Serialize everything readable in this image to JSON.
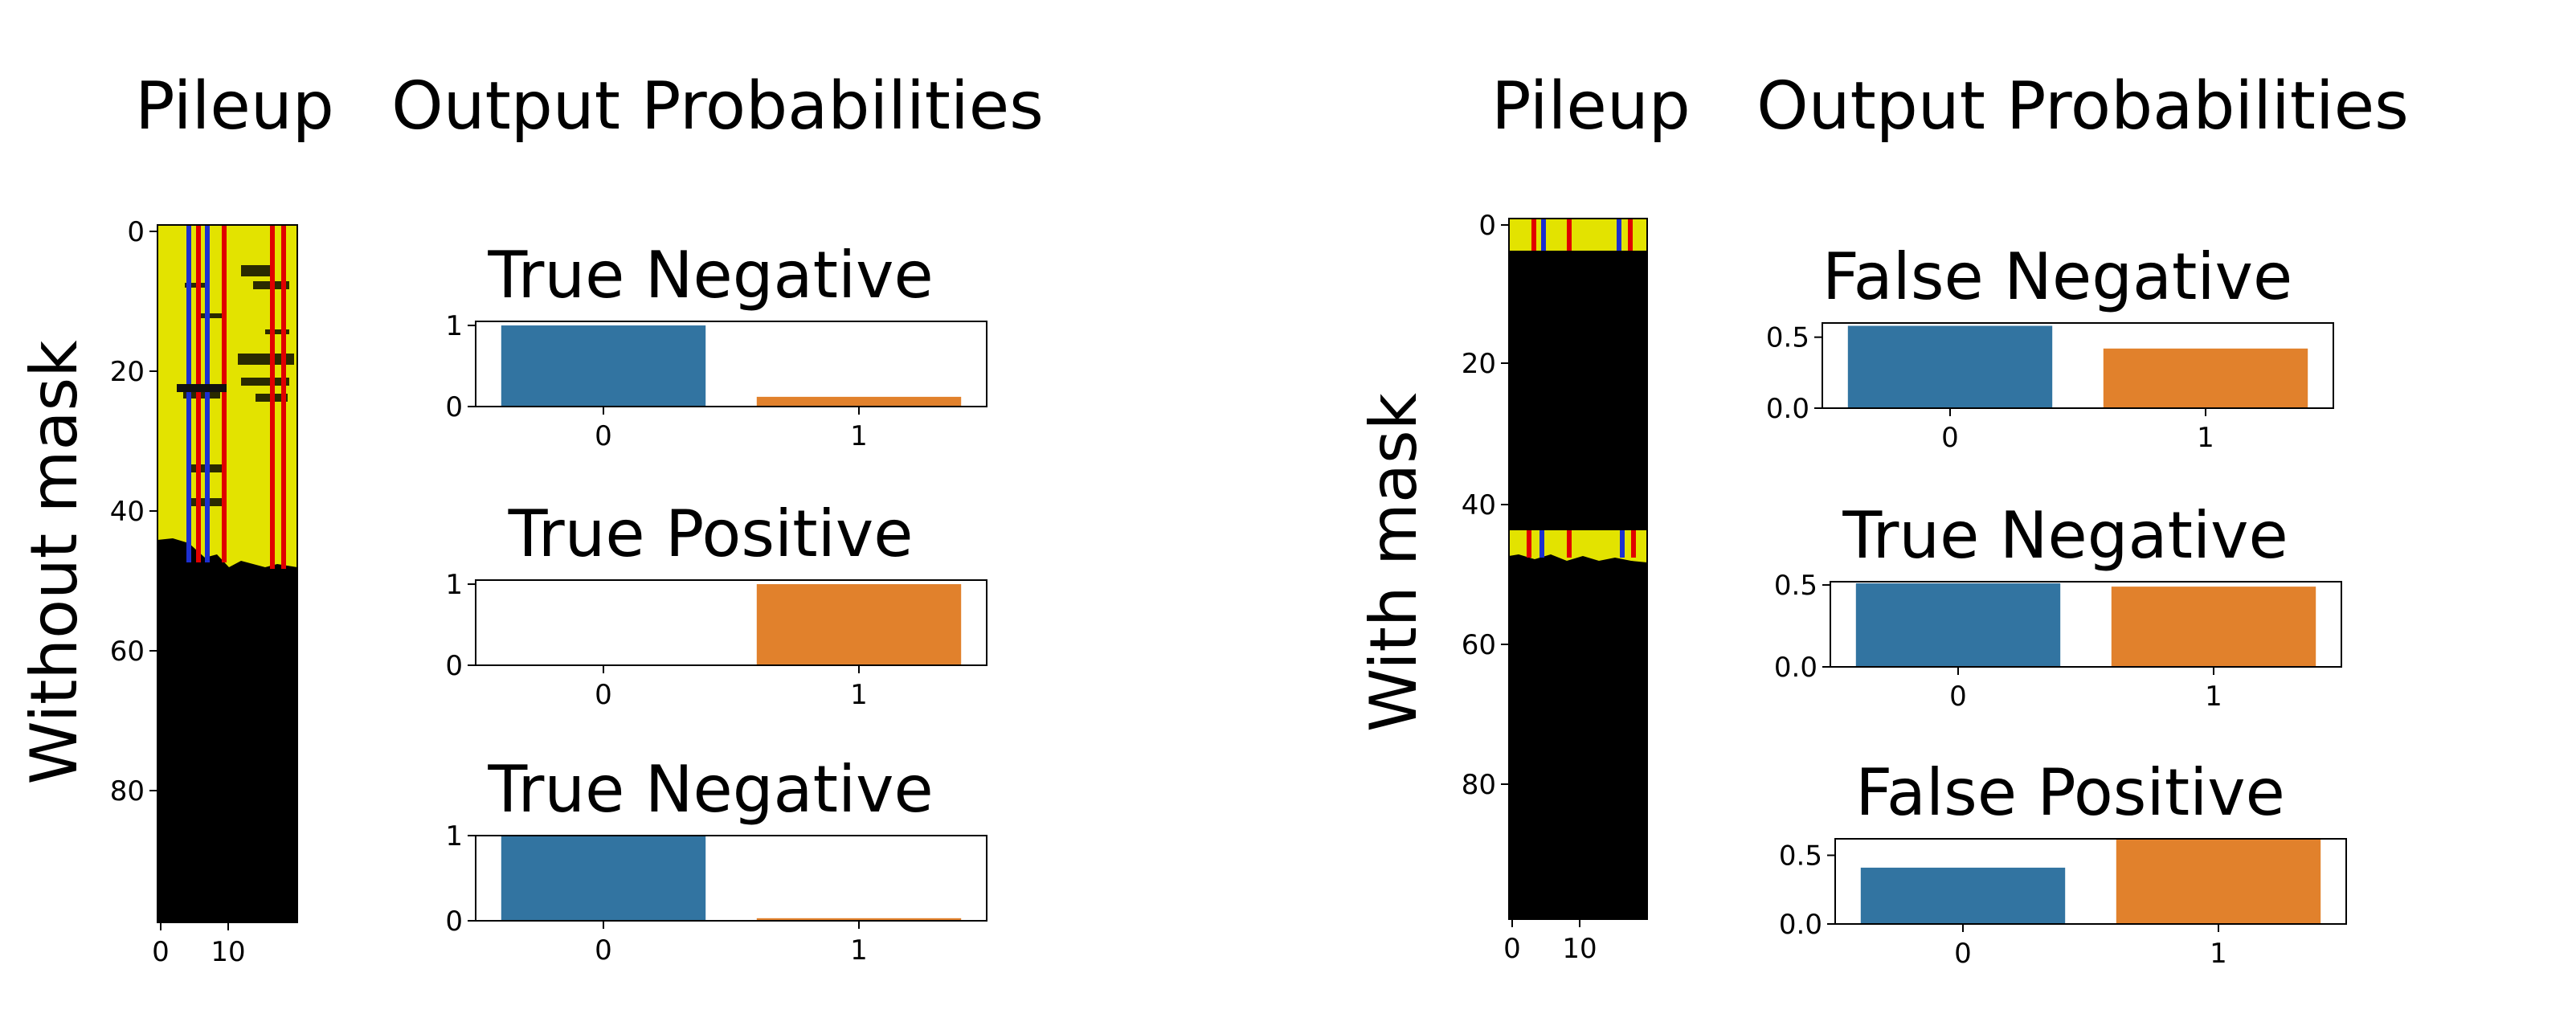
{
  "colors": {
    "bar0": "#3274a1",
    "bar1": "#e1812c",
    "pile_yellow": "#e3e300",
    "pile_black": "#000000",
    "pile_red": "#e00000",
    "pile_blue": "#1c2fd0"
  },
  "panels": [
    {
      "row_label": "Without mask",
      "pileup_title": "Pileup",
      "probs_title": "Output Probabilities",
      "pileup": {
        "yticks": [
          "0",
          "20",
          "40",
          "60",
          "80"
        ],
        "xticks": [
          "0",
          "10"
        ],
        "rows": 100,
        "cols": 20,
        "filled_rows": 48
      },
      "charts": [
        {
          "type": "bar",
          "title": "True Negative",
          "categories": [
            "0",
            "1"
          ],
          "values": [
            1.0,
            0.12
          ],
          "ylim": [
            0,
            1.05
          ],
          "yticks": [
            "0",
            "1"
          ]
        },
        {
          "type": "bar",
          "title": "True Positive",
          "categories": [
            "0",
            "1"
          ],
          "values": [
            0.0,
            1.0
          ],
          "ylim": [
            0,
            1.05
          ],
          "yticks": [
            "0",
            "1"
          ]
        },
        {
          "type": "bar",
          "title": "True Negative",
          "categories": [
            "0",
            "1"
          ],
          "values": [
            1.0,
            0.03
          ],
          "ylim": [
            0,
            1.0
          ],
          "yticks": [
            "0",
            "1"
          ]
        }
      ]
    },
    {
      "row_label": "With mask",
      "pileup_title": "Pileup",
      "probs_title": "Output Probabilities",
      "pileup": {
        "yticks": [
          "0",
          "20",
          "40",
          "60",
          "80"
        ],
        "xticks": [
          "0",
          "10"
        ],
        "rows": 100,
        "cols": 20,
        "filled_rows": 5
      },
      "charts": [
        {
          "type": "bar",
          "title": "False Negative",
          "categories": [
            "0",
            "1"
          ],
          "values": [
            0.58,
            0.42
          ],
          "ylim": [
            0,
            0.6
          ],
          "yticks": [
            "0.0",
            "0.5"
          ]
        },
        {
          "type": "bar",
          "title": "True Negative",
          "categories": [
            "0",
            "1"
          ],
          "values": [
            0.51,
            0.49
          ],
          "ylim": [
            0,
            0.52
          ],
          "yticks": [
            "0.0",
            "0.5"
          ]
        },
        {
          "type": "bar",
          "title": "False Positive",
          "categories": [
            "0",
            "1"
          ],
          "values": [
            0.41,
            0.62
          ],
          "ylim": [
            0,
            0.62
          ],
          "yticks": [
            "0.0",
            "0.5"
          ]
        }
      ]
    }
  ],
  "chart_data": [
    {
      "type": "bar",
      "title": "True Negative",
      "categories": [
        "0",
        "1"
      ],
      "values": [
        1.0,
        0.12
      ]
    },
    {
      "type": "bar",
      "title": "True Positive",
      "categories": [
        "0",
        "1"
      ],
      "values": [
        0.0,
        1.0
      ]
    },
    {
      "type": "bar",
      "title": "True Negative",
      "categories": [
        "0",
        "1"
      ],
      "values": [
        1.0,
        0.03
      ]
    },
    {
      "type": "bar",
      "title": "False Negative",
      "categories": [
        "0",
        "1"
      ],
      "values": [
        0.58,
        0.42
      ]
    },
    {
      "type": "bar",
      "title": "True Negative",
      "categories": [
        "0",
        "1"
      ],
      "values": [
        0.51,
        0.49
      ]
    },
    {
      "type": "bar",
      "title": "False Positive",
      "categories": [
        "0",
        "1"
      ],
      "values": [
        0.41,
        0.62
      ]
    }
  ]
}
